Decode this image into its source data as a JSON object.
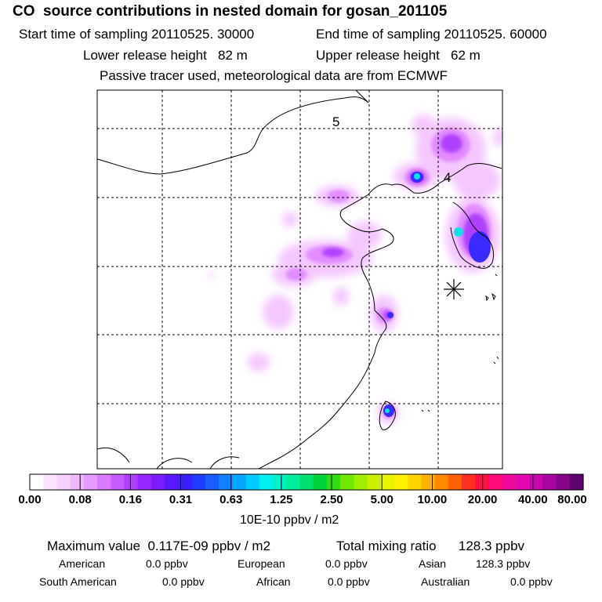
{
  "header": {
    "title": "CO  source contributions in nested domain for gosan_201105",
    "start_time": "Start time of sampling 20110525. 30000",
    "end_time": "End time of sampling 20110525. 60000",
    "lower_release": "Lower release height   82 m",
    "upper_release": "Upper release height   62 m",
    "tracer_note": "Passive tracer used, meteorological data are from ECMWF"
  },
  "map": {
    "labels": [
      {
        "id": "day5",
        "text": "5"
      },
      {
        "id": "day4",
        "text": "4"
      }
    ],
    "receptor_symbol": "asterisk-marker"
  },
  "colorbar": {
    "tick_labels": [
      "0.00",
      "0.08",
      "0.16",
      "0.31",
      "0.63",
      "1.25",
      "2.50",
      "5.00",
      "10.00",
      "20.00",
      "40.00",
      "80.00"
    ],
    "colors": [
      "#ffffff",
      "#fbe6ff",
      "#f6d0ff",
      "#efb8ff",
      "#e69cff",
      "#d97cff",
      "#c85bff",
      "#b13dff",
      "#9626ff",
      "#7a1cff",
      "#5a18ff",
      "#3a1eff",
      "#1e3cff",
      "#1a5cff",
      "#1280ff",
      "#06a6ff",
      "#00ccff",
      "#00f0ee",
      "#00f0c8",
      "#00ee9c",
      "#00e070",
      "#00d238",
      "#30dd10",
      "#70e800",
      "#a0ee00",
      "#c8f000",
      "#e8f400",
      "#fff200",
      "#ffd400",
      "#ffb200",
      "#ff8a00",
      "#ff6000",
      "#ff3020",
      "#ff1040",
      "#ff0a78",
      "#f0089c",
      "#e006b0",
      "#c806b0",
      "#a804a0",
      "#860488",
      "#5e0270"
    ],
    "units": "10E-10 ppbv / m2"
  },
  "summary": {
    "max_value": "Maximum value  0.117E-09 ppbv / m2",
    "total_mixing": "Total mixing ratio      128.3 ppbv",
    "sources": [
      {
        "name": "American",
        "value": "0.0 ppbv"
      },
      {
        "name": "European",
        "value": "0.0 ppbv"
      },
      {
        "name": "Asian",
        "value": "128.3 ppbv"
      },
      {
        "name": "South American",
        "value": "0.0 ppbv"
      },
      {
        "name": "African",
        "value": "0.0 ppbv"
      },
      {
        "name": "Australian",
        "value": "0.0 ppbv"
      }
    ]
  }
}
